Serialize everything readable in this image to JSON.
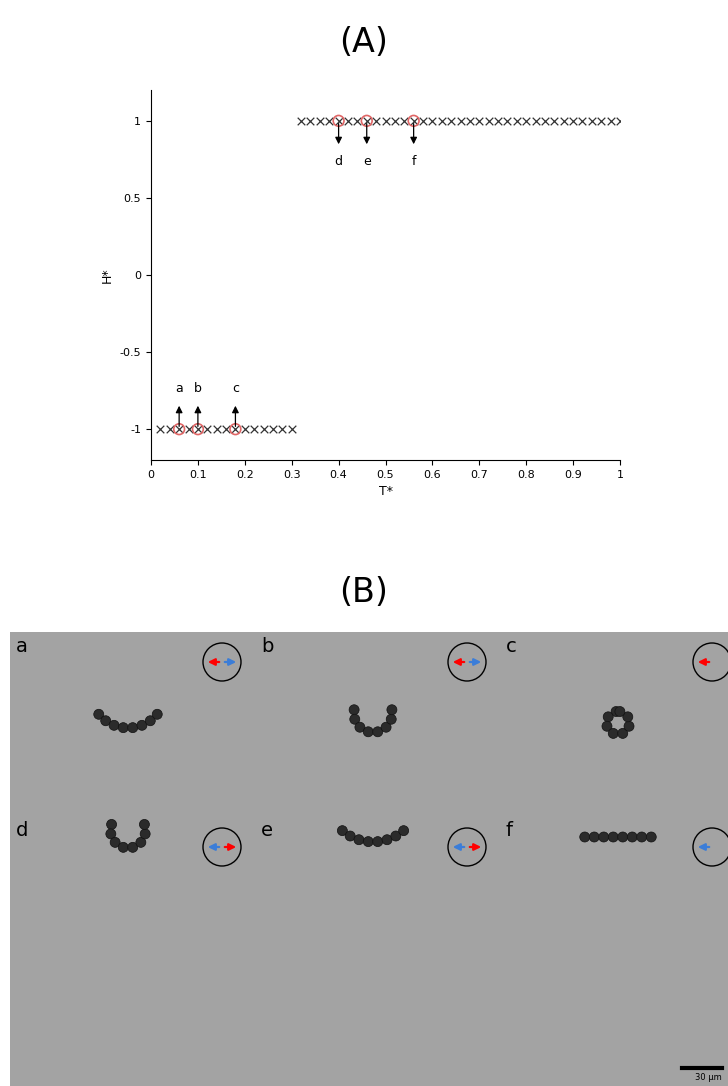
{
  "chart_data": {
    "type": "scatter",
    "title": "(A)",
    "x_label": "T*",
    "y_label": "H*",
    "xlim": [
      0,
      1
    ],
    "ylim": [
      -1.2,
      1.2
    ],
    "xticks": [
      0,
      0.1,
      0.2,
      0.3,
      0.4,
      0.5,
      0.6,
      0.7,
      0.8,
      0.9,
      1
    ],
    "yticks": [
      -1,
      -0.5,
      0,
      0.5,
      1
    ],
    "grid": false,
    "series": [
      {
        "color": "#333333",
        "marker": "x",
        "x": [
          0.02,
          0.04,
          0.06,
          0.08,
          0.1,
          0.12,
          0.14,
          0.16,
          0.18,
          0.2,
          0.22,
          0.24,
          0.26,
          0.28,
          0.3
        ],
        "y": [
          -1,
          -1,
          -1,
          -1,
          -1,
          -1,
          -1,
          -1,
          -1,
          -1,
          -1,
          -1,
          -1,
          -1,
          -1
        ]
      },
      {
        "color": "#333333",
        "marker": "x",
        "x": [
          0.32,
          0.34,
          0.36,
          0.38,
          0.4,
          0.42,
          0.44,
          0.46,
          0.48,
          0.5,
          0.52,
          0.54,
          0.56,
          0.58,
          0.6,
          0.62,
          0.64,
          0.66,
          0.68,
          0.7,
          0.72,
          0.74,
          0.76,
          0.78,
          0.8,
          0.82,
          0.84,
          0.86,
          0.88,
          0.9,
          0.92,
          0.94,
          0.96,
          0.98,
          1.0
        ],
        "y": [
          1,
          1,
          1,
          1,
          1,
          1,
          1,
          1,
          1,
          1,
          1,
          1,
          1,
          1,
          1,
          1,
          1,
          1,
          1,
          1,
          1,
          1,
          1,
          1,
          1,
          1,
          1,
          1,
          1,
          1,
          1,
          1,
          1,
          1,
          1
        ]
      },
      {
        "color": "#e06666",
        "marker": "o",
        "x": [
          0.06,
          0.1,
          0.18,
          0.4,
          0.46,
          0.56
        ],
        "y": [
          -1,
          -1,
          -1,
          1,
          1,
          1
        ]
      }
    ],
    "annotations": [
      {
        "text": "a",
        "x": 0.06,
        "y": -1
      },
      {
        "text": "b",
        "x": 0.1,
        "y": -1
      },
      {
        "text": "c",
        "x": 0.18,
        "y": -1
      },
      {
        "text": "d",
        "x": 0.4,
        "y": 1
      },
      {
        "text": "e",
        "x": 0.46,
        "y": 1
      },
      {
        "text": "f",
        "x": 0.56,
        "y": 1
      }
    ]
  },
  "panel_b": {
    "title": "(B)",
    "frames": [
      "a",
      "b",
      "c",
      "d",
      "e",
      "f"
    ],
    "scale_bar": "30 μm"
  }
}
